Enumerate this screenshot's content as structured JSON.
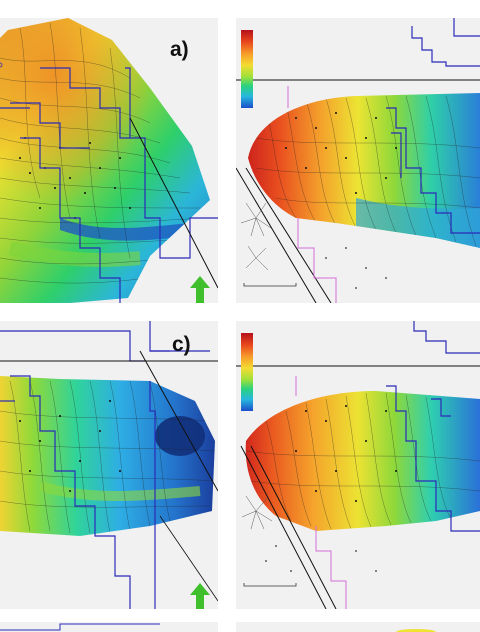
{
  "figure": {
    "panels": [
      {
        "id": "a",
        "label": "a)",
        "has_label": true,
        "color_scheme": "rainbow",
        "north_arrow": true
      },
      {
        "id": "b",
        "label": "",
        "has_label": false,
        "color_scheme": "rainbow-colorbar",
        "north_arrow": false
      },
      {
        "id": "c",
        "label": "c)",
        "has_label": true,
        "color_scheme": "rainbow",
        "north_arrow": true
      },
      {
        "id": "d",
        "label": "",
        "has_label": false,
        "color_scheme": "rainbow-colorbar",
        "north_arrow": false
      }
    ],
    "labels": {
      "a": "a)",
      "c": "c)"
    },
    "colors": {
      "well_marker": "#111111",
      "boundary_blue": "#2b2bb8",
      "boundary_pink": "#d46ed6",
      "fault_line": "#111111",
      "north_arrow": "#3fbf2c",
      "panel_background": "#f1f1f1"
    },
    "icons": [
      "north-arrow-icon",
      "colorbar-legend"
    ]
  }
}
